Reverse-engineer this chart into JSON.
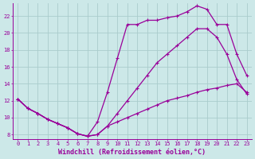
{
  "bg_color": "#cce8e8",
  "line_color": "#990099",
  "grid_color": "#aacccc",
  "xlabel": "Windchill (Refroidissement éolien,°C)",
  "xlim": [
    -0.5,
    23.5
  ],
  "ylim": [
    7.5,
    23.5
  ],
  "xticks": [
    0,
    1,
    2,
    3,
    4,
    5,
    6,
    7,
    8,
    9,
    10,
    11,
    12,
    13,
    14,
    15,
    16,
    17,
    18,
    19,
    20,
    21,
    22,
    23
  ],
  "yticks": [
    8,
    10,
    12,
    14,
    16,
    18,
    20,
    22
  ],
  "line1_x": [
    0,
    1,
    2,
    3,
    4,
    5,
    6,
    7,
    8,
    9,
    10,
    11,
    12,
    13,
    14,
    15,
    16,
    17,
    18,
    19,
    20,
    21,
    22,
    23
  ],
  "line1_y": [
    12.2,
    11.1,
    10.5,
    9.8,
    9.3,
    8.8,
    8.1,
    7.8,
    9.5,
    13.0,
    17.0,
    21.0,
    21.0,
    21.5,
    21.5,
    21.8,
    22.0,
    22.5,
    23.2,
    22.8,
    21.0,
    21.0,
    17.5,
    15.0
  ],
  "line2_x": [
    0,
    1,
    2,
    3,
    4,
    5,
    6,
    7,
    8,
    9,
    10,
    11,
    12,
    13,
    14,
    15,
    16,
    17,
    18,
    19,
    20,
    21,
    22,
    23
  ],
  "line2_y": [
    12.2,
    11.1,
    10.5,
    9.8,
    9.3,
    8.8,
    8.1,
    7.8,
    8.0,
    9.0,
    10.5,
    12.0,
    13.5,
    15.0,
    16.5,
    17.5,
    18.5,
    19.5,
    20.5,
    20.5,
    19.5,
    17.5,
    14.5,
    12.8
  ],
  "line3_x": [
    0,
    1,
    2,
    3,
    4,
    5,
    6,
    7,
    8,
    9,
    10,
    11,
    12,
    13,
    14,
    15,
    16,
    17,
    18,
    19,
    20,
    21,
    22,
    23
  ],
  "line3_y": [
    12.2,
    11.1,
    10.5,
    9.8,
    9.3,
    8.8,
    8.1,
    7.8,
    8.0,
    9.0,
    9.5,
    10.0,
    10.5,
    11.0,
    11.5,
    12.0,
    12.3,
    12.6,
    13.0,
    13.3,
    13.5,
    13.8,
    14.0,
    13.0
  ],
  "marker": "+",
  "markersize": 3,
  "linewidth": 0.9,
  "xlabel_fontsize": 6,
  "tick_fontsize": 5
}
